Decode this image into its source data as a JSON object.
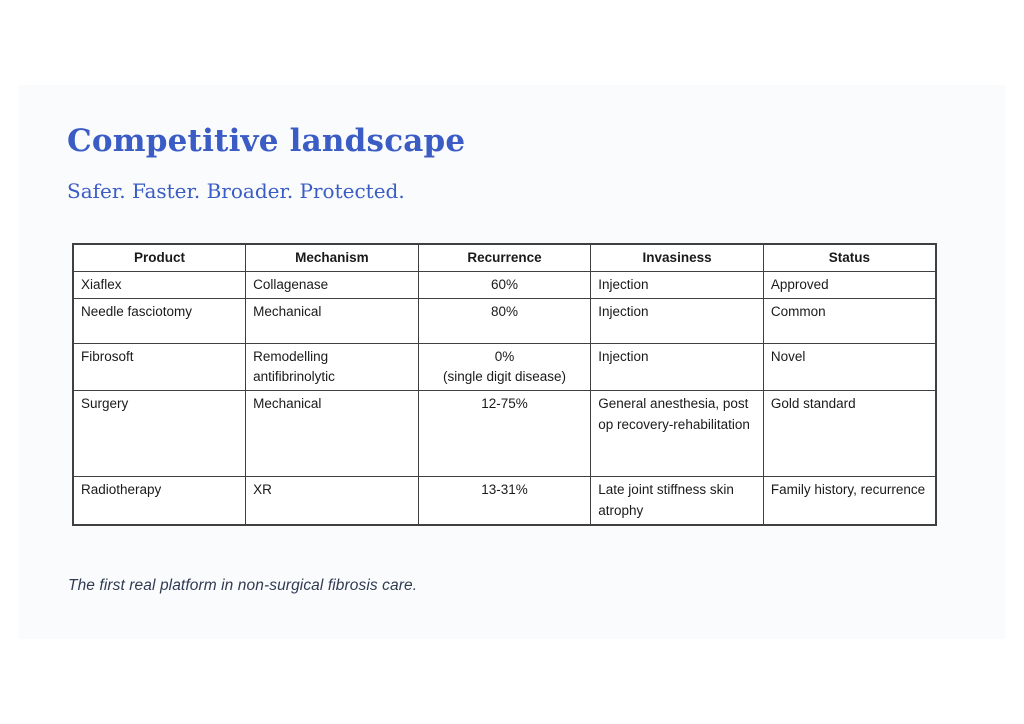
{
  "page": {
    "background_color": "#ffffff",
    "slide_background_color": "#fafbfd",
    "accent_color": "#3a5cc4"
  },
  "header": {
    "title": "Competitive landscape",
    "subtitle": "Safer. Faster. Broader. Protected."
  },
  "table": {
    "columns": [
      {
        "label": "Product",
        "align": "left"
      },
      {
        "label": "Mechanism",
        "align": "left"
      },
      {
        "label": "Recurrence",
        "align": "center"
      },
      {
        "label": "Invasiness",
        "align": "left"
      },
      {
        "label": "Status",
        "align": "left"
      }
    ],
    "rows": [
      {
        "product": "Xiaflex",
        "mechanism": "Collagenase",
        "recurrence": "60%",
        "invasiness": "Injection",
        "status": "Approved"
      },
      {
        "product": "Needle fasciotomy",
        "mechanism": "Mechanical",
        "recurrence": "80%",
        "invasiness": "Injection",
        "status": "Common"
      },
      {
        "product": "Fibrosoft",
        "mechanism": "Remodelling antifibrinolytic",
        "recurrence": "0%\n(single digit disease)",
        "invasiness": "Injection",
        "status": "Novel"
      },
      {
        "product": "Surgery",
        "mechanism": "Mechanical",
        "recurrence": "12-75%",
        "invasiness": "General anesthesia, post op recovery-rehabilitation",
        "status": "Gold standard"
      },
      {
        "product": "Radiotherapy",
        "mechanism": "XR",
        "recurrence": "13-31%",
        "invasiness": "Late joint stiffness skin atrophy",
        "status": "Family history, recurrence"
      }
    ]
  },
  "footer": {
    "tagline": "The first real platform in non-surgical fibrosis care."
  }
}
